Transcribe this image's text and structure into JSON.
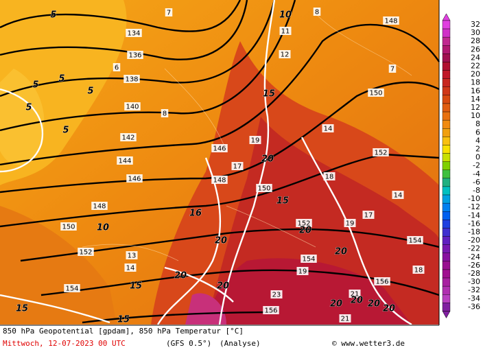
{
  "map": {
    "geopotential_labels": [
      134,
      136,
      138,
      140,
      142,
      144,
      146,
      148,
      150,
      152,
      154,
      146,
      148,
      150,
      150,
      152,
      152,
      154,
      154,
      156,
      156,
      148
    ],
    "temperature_labels": [
      7,
      8,
      11,
      12,
      7,
      6,
      8,
      14,
      19,
      17,
      18,
      14,
      17,
      19,
      13,
      14,
      18,
      19,
      21,
      23,
      21
    ],
    "isotherm_labels": [
      10,
      15,
      20,
      15,
      20,
      16,
      20,
      20,
      20,
      20,
      15,
      20,
      20,
      20,
      20,
      15,
      15,
      5,
      5,
      5,
      5,
      5,
      5,
      10
    ]
  },
  "color_scale": {
    "labels": [
      32,
      30,
      28,
      26,
      24,
      22,
      20,
      18,
      16,
      14,
      12,
      10,
      8,
      6,
      4,
      2,
      0,
      -2,
      -4,
      -6,
      -8,
      -10,
      -12,
      -14,
      -16,
      -18,
      -20,
      -22,
      -24,
      -26,
      -28,
      -30,
      -32,
      -34,
      -36
    ],
    "colors": [
      "#e040e0",
      "#d030c8",
      "#c02890",
      "#b01870",
      "#a01050",
      "#b01030",
      "#c01828",
      "#c82820",
      "#d03818",
      "#d84a10",
      "#e05c10",
      "#e87010",
      "#f08a10",
      "#f0a010",
      "#f8c010",
      "#f8e000",
      "#c8e000",
      "#80d000",
      "#40c040",
      "#20b080",
      "#00c0c0",
      "#00a0e0",
      "#0080f0",
      "#0060f0",
      "#2040e0",
      "#4030d0",
      "#6020c0",
      "#7818b0",
      "#8810a0",
      "#981090",
      "#a01090",
      "#a820a0",
      "#b030b0",
      "#b840c0",
      "#8020a0"
    ]
  },
  "footer": {
    "title": "850 hPa Geopotential [gpdam], 850 hPa Temperatur [°C]",
    "date": "Mittwoch, 12-07-2023  00 UTC",
    "model": "(GFS 0.5°)",
    "run": "(Analyse)",
    "source": "© www.wetter3.de"
  }
}
